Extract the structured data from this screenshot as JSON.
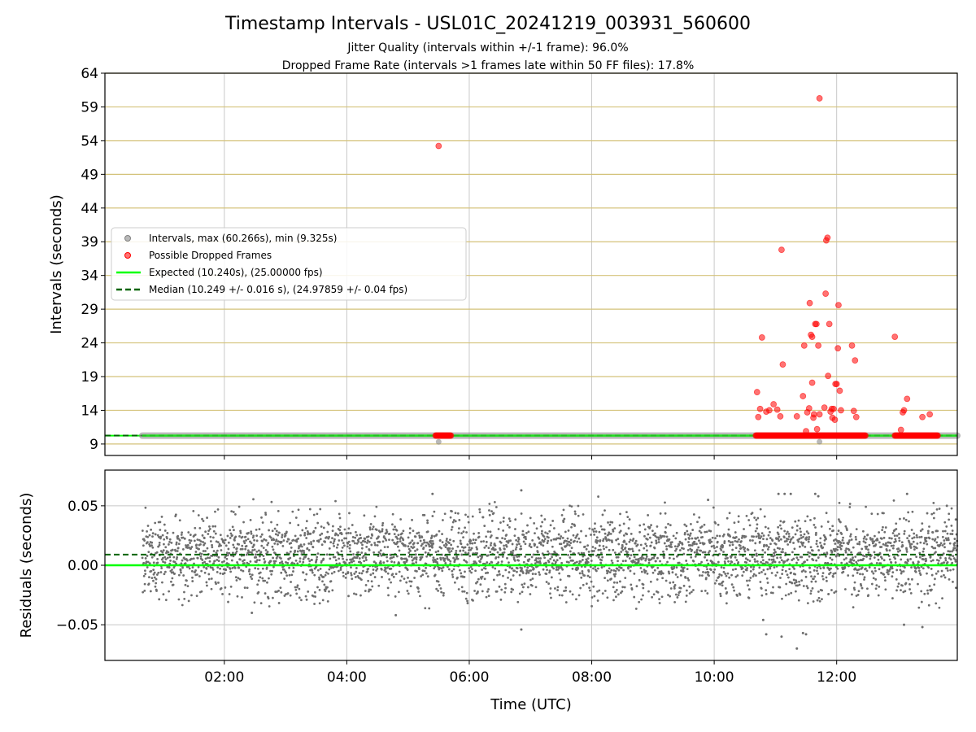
{
  "figure": {
    "title": "Timestamp Intervals - USL01C_20241219_003931_560600",
    "subtitle_line1": "Jitter Quality (intervals within +/-1 frame): 96.0%",
    "subtitle_line2": "Dropped Frame Rate (intervals >1 frames late within 50 FF files): 17.8%"
  },
  "colors": {
    "interval_points": "#808080",
    "dropped_points": "#ff0000",
    "expected_line": "#00ff00",
    "median_line": "#006400",
    "hgrid_top": "#d4c27a",
    "grid": "#c8c8c8",
    "residual_points": "#6e6e6e"
  },
  "chart_data": [
    {
      "type": "scatter",
      "ylabel": "Intervals (seconds)",
      "yticks": [
        9,
        14,
        19,
        24,
        29,
        34,
        39,
        44,
        49,
        54,
        59,
        64
      ],
      "ylim": [
        7.3,
        64
      ],
      "xlim_hours": [
        0.05,
        13.97
      ],
      "x_tick_hours": [
        2,
        4,
        6,
        8,
        10,
        12
      ],
      "x_tick_labels": [
        "02:00",
        "04:00",
        "06:00",
        "08:00",
        "10:00",
        "12:00"
      ],
      "grid": true,
      "legend_position": "center-left",
      "legend": [
        "Intervals, max (60.266s), min (9.325s)",
        "Possible Dropped Frames",
        "Expected (10.240s), (25.00000 fps)",
        "Median (10.249 +/- 0.016 s), (24.97859 +/- 0.04 fps)"
      ],
      "expected_value": 10.24,
      "median_value": 10.249,
      "baseline_segments_hours": [
        [
          0.66,
          13.97
        ]
      ],
      "low_outliers": [
        [
          5.5,
          9.325
        ],
        [
          11.72,
          9.33
        ]
      ],
      "dropped_baseline_clusters_hours": [
        [
          5.45,
          5.7
        ],
        [
          10.68,
          12.47
        ],
        [
          12.95,
          13.65
        ]
      ],
      "dropped_frames": [
        [
          5.5,
          53.2
        ],
        [
          11.72,
          60.27
        ],
        [
          10.7,
          16.7
        ],
        [
          10.72,
          13.0
        ],
        [
          10.75,
          14.2
        ],
        [
          10.78,
          24.8
        ],
        [
          10.85,
          13.8
        ],
        [
          10.9,
          14.0
        ],
        [
          10.97,
          14.9
        ],
        [
          11.03,
          14.1
        ],
        [
          11.08,
          13.1
        ],
        [
          11.1,
          37.8
        ],
        [
          11.12,
          20.8
        ],
        [
          11.35,
          13.1
        ],
        [
          11.45,
          16.1
        ],
        [
          11.47,
          23.6
        ],
        [
          11.5,
          10.9
        ],
        [
          11.52,
          13.7
        ],
        [
          11.55,
          14.3
        ],
        [
          11.56,
          29.9
        ],
        [
          11.58,
          25.2
        ],
        [
          11.6,
          24.9
        ],
        [
          11.6,
          18.1
        ],
        [
          11.62,
          12.9
        ],
        [
          11.63,
          13.4
        ],
        [
          11.65,
          26.8
        ],
        [
          11.67,
          26.8
        ],
        [
          11.68,
          11.2
        ],
        [
          11.7,
          23.6
        ],
        [
          11.72,
          13.4
        ],
        [
          11.8,
          14.4
        ],
        [
          11.82,
          31.3
        ],
        [
          11.83,
          39.2
        ],
        [
          11.85,
          39.6
        ],
        [
          11.86,
          19.1
        ],
        [
          11.88,
          26.8
        ],
        [
          11.9,
          13.8
        ],
        [
          11.92,
          14.2
        ],
        [
          11.93,
          12.9
        ],
        [
          11.95,
          14.2
        ],
        [
          11.97,
          12.6
        ],
        [
          11.98,
          17.9
        ],
        [
          12.0,
          17.9
        ],
        [
          12.02,
          23.2
        ],
        [
          12.03,
          29.6
        ],
        [
          12.05,
          16.9
        ],
        [
          12.07,
          14.0
        ],
        [
          12.25,
          23.6
        ],
        [
          12.28,
          13.9
        ],
        [
          12.3,
          21.4
        ],
        [
          12.32,
          13.0
        ],
        [
          12.95,
          24.9
        ],
        [
          13.05,
          11.1
        ],
        [
          13.08,
          13.7
        ],
        [
          13.1,
          14.0
        ],
        [
          13.15,
          15.7
        ],
        [
          13.4,
          13.0
        ],
        [
          13.52,
          13.4
        ]
      ]
    },
    {
      "type": "scatter",
      "ylabel": "Residuals (seconds)",
      "xlabel": "Time (UTC)",
      "ylim": [
        -0.08,
        0.08
      ],
      "yticks": [
        -0.05,
        0.0,
        0.05
      ],
      "ytick_labels": [
        "−0.05",
        "0.00",
        "0.05"
      ],
      "xlim_hours": [
        0.05,
        13.97
      ],
      "x_tick_hours": [
        2,
        4,
        6,
        8,
        10,
        12
      ],
      "x_tick_labels": [
        "02:00",
        "04:00",
        "06:00",
        "08:00",
        "10:00",
        "12:00"
      ],
      "grid": true,
      "expected_value": 0.0,
      "median_value": 0.009,
      "x_start_hours": 0.66,
      "point_count": 3600,
      "residual_levels": [
        -0.02,
        0.0,
        0.02,
        0.04
      ],
      "outliers": [
        [
          5.4,
          0.06
        ],
        [
          6.85,
          0.063
        ],
        [
          6.85,
          -0.054
        ],
        [
          4.8,
          -0.042
        ],
        [
          2.45,
          -0.04
        ],
        [
          10.8,
          -0.046
        ],
        [
          10.85,
          -0.058
        ],
        [
          11.1,
          -0.06
        ],
        [
          11.35,
          -0.07
        ],
        [
          11.45,
          -0.057
        ],
        [
          11.5,
          -0.058
        ],
        [
          11.05,
          0.06
        ],
        [
          11.15,
          0.06
        ],
        [
          11.25,
          0.06
        ],
        [
          11.65,
          0.06
        ],
        [
          11.7,
          0.058
        ],
        [
          13.15,
          0.06
        ],
        [
          13.1,
          -0.05
        ],
        [
          13.4,
          -0.052
        ],
        [
          9.9,
          0.055
        ],
        [
          13.8,
          0.05
        ]
      ]
    }
  ]
}
